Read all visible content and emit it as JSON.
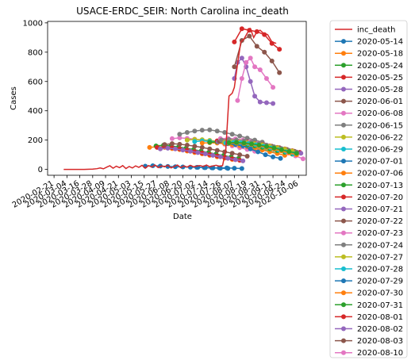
{
  "chart_data": {
    "type": "line",
    "title": "USACE-ERDC_SEIR: North Carolina inc_death",
    "xlabel": "Date",
    "ylabel": "Cases",
    "ylim": [
      -40,
      1010
    ],
    "yticks": [
      0,
      200,
      400,
      600,
      800,
      1000
    ],
    "xlim": [
      "2020-02-15",
      "2020-10-13"
    ],
    "xticks": [
      "2020-02-21",
      "2020-03-04",
      "2020-03-16",
      "2020-03-28",
      "2020-04-09",
      "2020-04-21",
      "2020-05-03",
      "2020-05-15",
      "2020-05-27",
      "2020-06-08",
      "2020-06-20",
      "2020-07-02",
      "2020-07-14",
      "2020-07-26",
      "2020-08-07",
      "2020-08-19",
      "2020-08-31",
      "2020-09-12",
      "2020-09-24",
      "2020-10-06"
    ],
    "grid": false,
    "legend_placement": "outside-right",
    "legend_entries": [
      "inc_death",
      "2020-05-14",
      "2020-05-18",
      "2020-05-24",
      "2020-05-25",
      "2020-05-28",
      "2020-06-01",
      "2020-06-08",
      "2020-06-15",
      "2020-06-22",
      "2020-06-29",
      "2020-07-01",
      "2020-07-06",
      "2020-07-13",
      "2020-07-20",
      "2020-07-21",
      "2020-07-22",
      "2020-07-23",
      "2020-07-24",
      "2020-07-27",
      "2020-07-28",
      "2020-07-29",
      "2020-07-30",
      "2020-07-31",
      "2020-08-01",
      "2020-08-02",
      "2020-08-03",
      "2020-08-10"
    ],
    "colors": {
      "inc_death": "#d62728",
      "2020-05-14": "#1f77b4",
      "2020-05-18": "#ff7f0e",
      "2020-05-24": "#2ca02c",
      "2020-05-25": "#d62728",
      "2020-05-28": "#9467bd",
      "2020-06-01": "#8c564b",
      "2020-06-08": "#e377c2",
      "2020-06-15": "#7f7f7f",
      "2020-06-22": "#bcbd22",
      "2020-06-29": "#17becf",
      "2020-07-01": "#1f77b4",
      "2020-07-06": "#ff7f0e",
      "2020-07-13": "#2ca02c",
      "2020-07-20": "#d62728",
      "2020-07-21": "#9467bd",
      "2020-07-22": "#8c564b",
      "2020-07-23": "#e377c2",
      "2020-07-24": "#7f7f7f",
      "2020-07-27": "#bcbd22",
      "2020-07-28": "#17becf",
      "2020-07-29": "#1f77b4",
      "2020-07-30": "#ff7f0e",
      "2020-07-31": "#2ca02c",
      "2020-08-01": "#d62728",
      "2020-08-02": "#9467bd",
      "2020-08-03": "#8c564b",
      "2020-08-10": "#e377c2"
    },
    "observed": {
      "name": "inc_death",
      "x": [
        "2020-03-01",
        "2020-03-05",
        "2020-03-10",
        "2020-03-15",
        "2020-03-20",
        "2020-03-25",
        "2020-03-28",
        "2020-04-01",
        "2020-04-04",
        "2020-04-07",
        "2020-04-10",
        "2020-04-13",
        "2020-04-16",
        "2020-04-19",
        "2020-04-22",
        "2020-04-25",
        "2020-04-28",
        "2020-05-01",
        "2020-05-04",
        "2020-05-07",
        "2020-05-10",
        "2020-05-13",
        "2020-05-16",
        "2020-05-19",
        "2020-05-22",
        "2020-05-25",
        "2020-05-28",
        "2020-05-31",
        "2020-06-03",
        "2020-06-06",
        "2020-06-09",
        "2020-06-12",
        "2020-06-15",
        "2020-06-18",
        "2020-06-21",
        "2020-06-24",
        "2020-06-27",
        "2020-06-30",
        "2020-07-03",
        "2020-07-06",
        "2020-07-09",
        "2020-07-12",
        "2020-07-15",
        "2020-07-18",
        "2020-07-21",
        "2020-07-24",
        "2020-07-27",
        "2020-07-30",
        "2020-08-02",
        "2020-08-05",
        "2020-08-07",
        "2020-08-10",
        "2020-08-13",
        "2020-08-16",
        "2020-08-19",
        "2020-08-22",
        "2020-08-25",
        "2020-08-28",
        "2020-08-31",
        "2020-09-03",
        "2020-09-07",
        "2020-09-11",
        "2020-09-15"
      ],
      "y": [
        0,
        0,
        0,
        0,
        0,
        1,
        2,
        5,
        10,
        4,
        15,
        25,
        8,
        22,
        12,
        26,
        6,
        20,
        10,
        24,
        14,
        28,
        8,
        26,
        16,
        30,
        12,
        24,
        18,
        28,
        10,
        20,
        30,
        12,
        24,
        16,
        28,
        18,
        22,
        26,
        20,
        30,
        18,
        24,
        28,
        22,
        26,
        130,
        500,
        520,
        560,
        720,
        870,
        890,
        930,
        960,
        900,
        940,
        950,
        930,
        920,
        870,
        860
      ]
    },
    "forecasts": [
      {
        "name": "2020-05-14",
        "x": [
          "2020-05-16",
          "2020-05-23",
          "2020-05-30",
          "2020-06-06",
          "2020-06-13",
          "2020-06-20",
          "2020-06-27",
          "2020-07-04",
          "2020-07-11",
          "2020-07-18",
          "2020-07-25",
          "2020-08-01"
        ],
        "y": [
          22,
          25,
          23,
          20,
          18,
          17,
          15,
          14,
          12,
          10,
          8,
          7
        ]
      },
      {
        "name": "2020-05-18",
        "x": [
          "2020-05-20",
          "2020-05-27",
          "2020-06-03",
          "2020-06-10",
          "2020-06-17",
          "2020-06-24",
          "2020-07-01",
          "2020-07-08",
          "2020-07-15",
          "2020-07-22",
          "2020-07-29",
          "2020-08-05"
        ],
        "y": [
          150,
          155,
          150,
          142,
          135,
          125,
          115,
          106,
          96,
          86,
          77,
          68
        ]
      },
      {
        "name": "2020-05-24",
        "x": [
          "2020-05-26",
          "2020-06-02",
          "2020-06-09",
          "2020-06-16",
          "2020-06-23",
          "2020-06-30",
          "2020-07-07",
          "2020-07-14",
          "2020-07-21",
          "2020-07-28",
          "2020-08-04",
          "2020-08-11"
        ],
        "y": [
          160,
          165,
          160,
          153,
          145,
          135,
          125,
          115,
          105,
          95,
          85,
          75
        ]
      },
      {
        "name": "2020-05-25",
        "x": [
          "2020-05-27",
          "2020-06-03",
          "2020-06-10",
          "2020-06-17",
          "2020-06-24",
          "2020-07-01",
          "2020-07-08",
          "2020-07-15",
          "2020-07-22",
          "2020-07-29",
          "2020-08-05",
          "2020-08-12"
        ],
        "y": [
          150,
          154,
          148,
          140,
          132,
          122,
          112,
          102,
          92,
          82,
          72,
          62
        ]
      },
      {
        "name": "2020-05-28",
        "x": [
          "2020-05-30",
          "2020-06-06",
          "2020-06-13",
          "2020-06-20",
          "2020-06-27",
          "2020-07-04",
          "2020-07-11",
          "2020-07-18",
          "2020-07-25",
          "2020-08-01",
          "2020-08-08",
          "2020-08-15"
        ],
        "y": [
          140,
          145,
          140,
          132,
          124,
          115,
          106,
          96,
          86,
          76,
          66,
          58
        ]
      },
      {
        "name": "2020-06-01",
        "x": [
          "2020-06-03",
          "2020-06-10",
          "2020-06-17",
          "2020-06-24",
          "2020-07-01",
          "2020-07-08",
          "2020-07-15",
          "2020-07-22",
          "2020-07-29",
          "2020-08-05",
          "2020-08-12",
          "2020-08-19"
        ],
        "y": [
          170,
          176,
          172,
          166,
          158,
          150,
          140,
          130,
          120,
          110,
          100,
          90
        ]
      },
      {
        "name": "2020-06-08",
        "x": [
          "2020-06-10",
          "2020-06-17",
          "2020-06-24",
          "2020-07-01",
          "2020-07-08",
          "2020-07-15",
          "2020-07-22",
          "2020-07-29",
          "2020-08-05",
          "2020-08-12",
          "2020-08-19",
          "2020-08-26"
        ],
        "y": [
          210,
          215,
          212,
          206,
          198,
          190,
          182,
          172,
          160,
          148,
          136,
          124
        ]
      },
      {
        "name": "2020-06-15",
        "x": [
          "2020-06-17",
          "2020-06-24",
          "2020-07-01",
          "2020-07-08",
          "2020-07-15",
          "2020-07-22",
          "2020-07-29",
          "2020-08-05",
          "2020-08-12",
          "2020-08-19",
          "2020-08-26",
          "2020-09-02"
        ],
        "y": [
          240,
          252,
          262,
          268,
          270,
          262,
          252,
          240,
          228,
          214,
          200,
          186
        ]
      },
      {
        "name": "2020-06-22",
        "x": [
          "2020-06-24",
          "2020-07-01",
          "2020-07-08",
          "2020-07-15",
          "2020-07-22",
          "2020-07-29",
          "2020-08-05",
          "2020-08-12",
          "2020-08-19",
          "2020-08-26",
          "2020-09-02",
          "2020-09-09"
        ],
        "y": [
          200,
          205,
          203,
          198,
          192,
          186,
          178,
          170,
          160,
          150,
          140,
          130
        ]
      },
      {
        "name": "2020-06-29",
        "x": [
          "2020-07-01",
          "2020-07-08",
          "2020-07-15",
          "2020-07-22",
          "2020-07-29",
          "2020-08-05",
          "2020-08-12",
          "2020-08-19",
          "2020-08-26",
          "2020-09-02",
          "2020-09-09",
          "2020-09-16"
        ],
        "y": [
          190,
          194,
          192,
          188,
          182,
          176,
          168,
          158,
          148,
          136,
          124,
          112
        ]
      },
      {
        "name": "2020-07-01",
        "x": [
          "2020-07-03",
          "2020-07-10",
          "2020-07-17",
          "2020-07-24",
          "2020-07-31",
          "2020-08-07",
          "2020-08-14"
        ],
        "y": [
          14,
          12,
          11,
          10,
          10,
          8,
          6
        ]
      },
      {
        "name": "2020-07-06",
        "x": [
          "2020-07-08",
          "2020-07-15",
          "2020-07-22",
          "2020-07-29",
          "2020-08-05",
          "2020-08-12",
          "2020-08-19",
          "2020-08-26",
          "2020-09-02",
          "2020-09-09",
          "2020-09-16",
          "2020-09-23"
        ],
        "y": [
          180,
          182,
          180,
          176,
          170,
          162,
          154,
          144,
          132,
          120,
          108,
          96
        ]
      },
      {
        "name": "2020-07-13",
        "x": [
          "2020-07-15",
          "2020-07-22",
          "2020-07-29",
          "2020-08-05",
          "2020-08-12",
          "2020-08-19",
          "2020-08-26",
          "2020-09-02",
          "2020-09-09",
          "2020-09-16",
          "2020-09-23",
          "2020-09-30"
        ],
        "y": [
          185,
          188,
          186,
          182,
          176,
          168,
          160,
          150,
          140,
          128,
          116,
          104
        ]
      },
      {
        "name": "2020-07-20",
        "x": [
          "2020-07-22",
          "2020-07-29",
          "2020-08-05",
          "2020-08-12",
          "2020-08-19",
          "2020-08-26",
          "2020-09-02",
          "2020-09-09",
          "2020-09-16",
          "2020-09-23",
          "2020-09-30",
          "2020-10-07"
        ],
        "y": [
          195,
          198,
          196,
          192,
          186,
          178,
          170,
          160,
          150,
          140,
          128,
          116
        ]
      },
      {
        "name": "2020-07-21",
        "x": [
          "2020-07-23",
          "2020-07-30",
          "2020-08-06",
          "2020-08-13",
          "2020-08-20",
          "2020-08-27",
          "2020-09-03",
          "2020-09-10",
          "2020-09-17",
          "2020-09-24",
          "2020-10-01",
          "2020-10-08"
        ],
        "y": [
          188,
          192,
          190,
          186,
          180,
          172,
          164,
          154,
          144,
          134,
          122,
          110
        ]
      },
      {
        "name": "2020-07-22",
        "x": [
          "2020-07-24",
          "2020-07-31",
          "2020-08-07",
          "2020-08-14",
          "2020-08-21",
          "2020-08-28",
          "2020-09-04",
          "2020-09-11",
          "2020-09-18",
          "2020-09-25",
          "2020-10-02"
        ],
        "y": [
          192,
          196,
          194,
          190,
          184,
          176,
          168,
          158,
          148,
          136,
          124
        ]
      },
      {
        "name": "2020-07-23",
        "x": [
          "2020-07-25",
          "2020-08-01",
          "2020-08-08",
          "2020-08-15",
          "2020-08-22",
          "2020-08-29",
          "2020-09-05",
          "2020-09-12",
          "2020-09-19",
          "2020-09-26",
          "2020-10-03",
          "2020-10-10"
        ],
        "y": [
          210,
          212,
          208,
          200,
          190,
          178,
          164,
          148,
          130,
          112,
          92,
          72
        ]
      },
      {
        "name": "2020-07-24",
        "x": [
          "2020-07-26",
          "2020-08-02",
          "2020-08-09",
          "2020-08-16",
          "2020-08-23",
          "2020-08-30",
          "2020-09-06",
          "2020-09-13",
          "2020-09-20",
          "2020-09-27",
          "2020-10-04"
        ],
        "y": [
          200,
          204,
          200,
          194,
          186,
          176,
          166,
          154,
          142,
          130,
          118
        ]
      },
      {
        "name": "2020-07-27",
        "x": [
          "2020-07-29",
          "2020-08-05",
          "2020-08-12",
          "2020-08-19",
          "2020-08-26",
          "2020-09-02",
          "2020-09-09",
          "2020-09-16",
          "2020-09-23",
          "2020-09-30"
        ],
        "y": [
          185,
          188,
          186,
          182,
          176,
          168,
          158,
          148,
          138,
          126
        ]
      },
      {
        "name": "2020-07-28",
        "x": [
          "2020-07-30",
          "2020-08-06",
          "2020-08-13",
          "2020-08-20",
          "2020-08-27",
          "2020-09-03",
          "2020-09-10",
          "2020-09-17",
          "2020-09-24",
          "2020-10-01"
        ],
        "y": [
          180,
          184,
          182,
          176,
          168,
          158,
          146,
          134,
          120,
          106
        ]
      },
      {
        "name": "2020-07-29",
        "x": [
          "2020-08-01",
          "2020-08-08",
          "2020-08-15",
          "2020-08-22",
          "2020-08-29",
          "2020-09-05",
          "2020-09-12",
          "2020-09-19"
        ],
        "y": [
          175,
          170,
          160,
          140,
          120,
          100,
          85,
          75
        ]
      },
      {
        "name": "2020-07-30",
        "x": [
          "2020-08-02",
          "2020-08-09",
          "2020-08-16",
          "2020-08-23",
          "2020-08-30",
          "2020-09-06",
          "2020-09-13",
          "2020-09-20",
          "2020-09-27",
          "2020-10-04"
        ],
        "y": [
          178,
          180,
          176,
          170,
          160,
          150,
          138,
          126,
          112,
          100
        ]
      },
      {
        "name": "2020-07-31",
        "x": [
          "2020-08-02",
          "2020-08-09",
          "2020-08-16",
          "2020-08-23",
          "2020-08-30",
          "2020-09-06",
          "2020-09-13",
          "2020-09-20",
          "2020-09-27",
          "2020-10-04"
        ],
        "y": [
          182,
          184,
          180,
          174,
          166,
          156,
          146,
          134,
          122,
          110
        ]
      },
      {
        "name": "2020-08-01",
        "x": [
          "2020-08-07",
          "2020-08-14",
          "2020-08-21",
          "2020-08-28",
          "2020-09-04",
          "2020-09-11",
          "2020-09-18"
        ],
        "y": [
          870,
          960,
          950,
          940,
          920,
          860,
          820
        ]
      },
      {
        "name": "2020-08-02",
        "x": [
          "2020-08-07",
          "2020-08-10",
          "2020-08-14",
          "2020-08-18",
          "2020-08-22",
          "2020-08-26",
          "2020-08-31",
          "2020-09-06",
          "2020-09-12"
        ],
        "y": [
          620,
          730,
          760,
          700,
          600,
          500,
          460,
          455,
          450
        ]
      },
      {
        "name": "2020-08-03",
        "x": [
          "2020-08-07",
          "2020-08-14",
          "2020-08-21",
          "2020-08-28",
          "2020-09-04",
          "2020-09-11",
          "2020-09-18"
        ],
        "y": [
          700,
          880,
          910,
          840,
          800,
          740,
          660
        ]
      },
      {
        "name": "2020-08-10",
        "x": [
          "2020-08-10",
          "2020-08-14",
          "2020-08-18",
          "2020-08-22",
          "2020-08-26",
          "2020-08-31",
          "2020-09-06",
          "2020-09-12"
        ],
        "y": [
          470,
          620,
          730,
          760,
          700,
          680,
          620,
          560
        ]
      }
    ]
  }
}
